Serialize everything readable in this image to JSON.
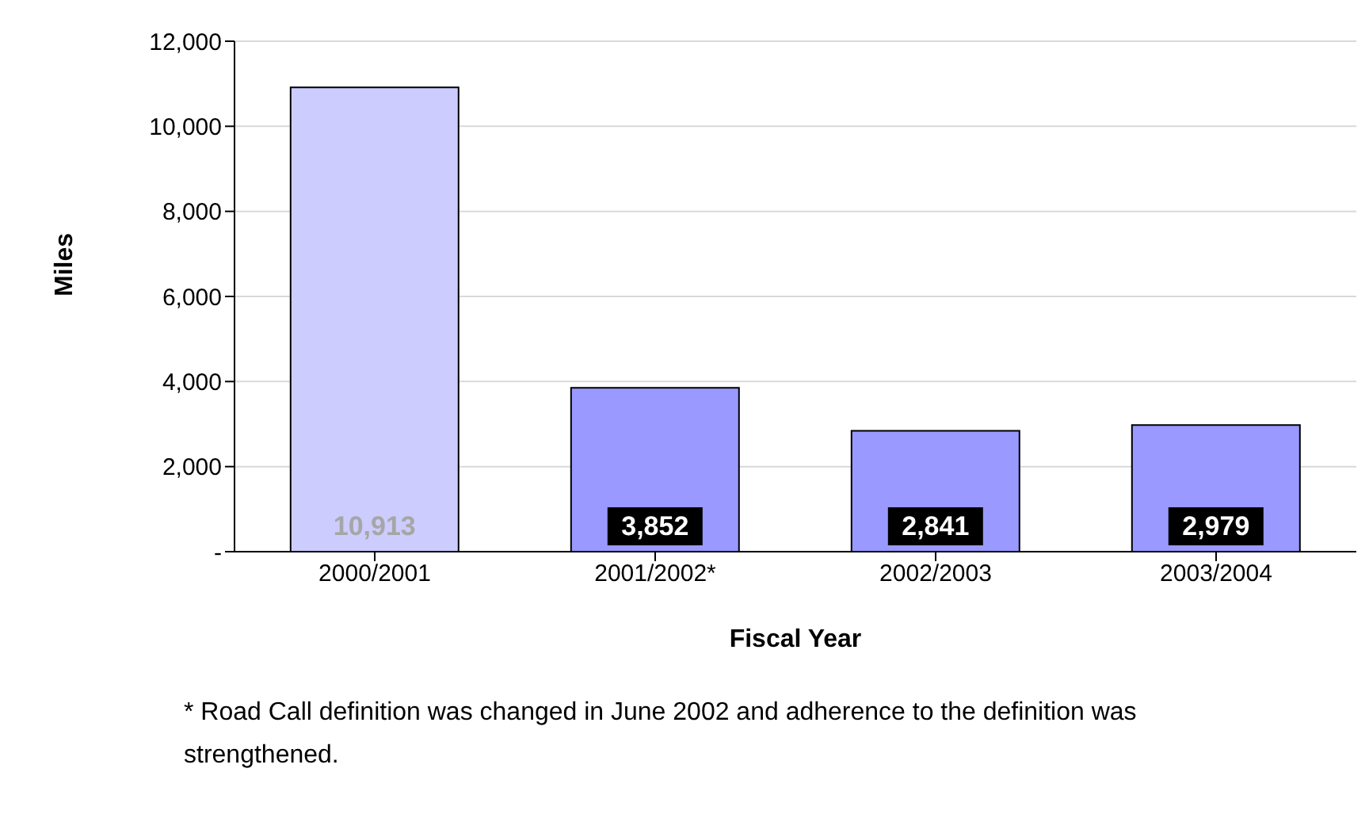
{
  "chart_data": {
    "type": "bar",
    "categories": [
      "2000/2001",
      "2001/2002*",
      "2002/2003",
      "2003/2004"
    ],
    "values": [
      10913,
      3852,
      2841,
      2979
    ],
    "colors": [
      "#ccccff",
      "#9999ff",
      "#9999ff",
      "#9999ff"
    ],
    "value_labels": [
      "10,913",
      "3,852",
      "2,841",
      "2,979"
    ],
    "ylim": [
      0,
      12000
    ],
    "yticks": [
      {
        "value": 0,
        "label": "-"
      },
      {
        "value": 2000,
        "label": "2,000"
      },
      {
        "value": 4000,
        "label": "4,000"
      },
      {
        "value": 6000,
        "label": "6,000"
      },
      {
        "value": 8000,
        "label": "8,000"
      },
      {
        "value": 10000,
        "label": "10,000"
      },
      {
        "value": 12000,
        "label": "12,000"
      }
    ],
    "grid": "y",
    "xlabel": "Fiscal Year",
    "ylabel": "Miles",
    "annotations": [
      "* Road Call definition was changed in June 2002 and adherence to the definition was strengthened."
    ]
  }
}
